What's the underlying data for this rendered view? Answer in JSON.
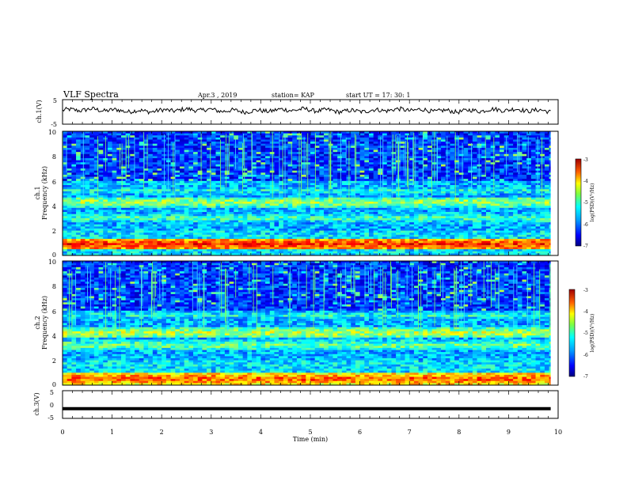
{
  "header": {
    "title": "VLF Spectra",
    "date": "Apr.3  , 2019",
    "station": "station= KAP",
    "start": "start  UT =   17: 30: 1"
  },
  "chart_data": [
    {
      "type": "line",
      "panel": "ch1-waveform",
      "ylabel": "ch.1(V)",
      "xlim": [
        0,
        10
      ],
      "ylim": [
        -5,
        5
      ],
      "yticks": [
        "5",
        "-5"
      ],
      "x_extent": [
        0,
        9.85
      ],
      "level_mean": 0.6,
      "level_fluctuation": 0.9
    },
    {
      "type": "heatmap",
      "panel": "ch1-spectrogram",
      "ylabel": "ch.1",
      "ylabel2": "Frequency (kHz)",
      "xlim": [
        0,
        10
      ],
      "ylim": [
        0,
        10
      ],
      "yticks": [
        "0",
        "2",
        "4",
        "6",
        "8",
        "10"
      ],
      "colorbar": {
        "label": "log(PSD)(V²/Hz)",
        "range": [
          -7,
          -3
        ],
        "ticks": [
          "-3",
          "-4",
          "-5",
          "-6",
          "-7"
        ]
      },
      "bands_khz": [
        {
          "f": 0.9,
          "level": -3.6
        },
        {
          "f": 4.3,
          "level": -4.8
        },
        {
          "f": 3.0,
          "level": -5.2
        },
        {
          "f": 5.2,
          "level": -5.4
        }
      ]
    },
    {
      "type": "heatmap",
      "panel": "ch2-spectrogram",
      "ylabel": "ch.2",
      "ylabel2": "Frequency (kHz)",
      "xlim": [
        0,
        10
      ],
      "ylim": [
        0,
        10
      ],
      "yticks": [
        "0",
        "2",
        "4",
        "6",
        "8",
        "10"
      ],
      "colorbar": {
        "label": "log(PSD)(V²/Hz)",
        "range": [
          -7,
          -3
        ],
        "ticks": [
          "-3",
          "-4",
          "-5",
          "-6",
          "-7"
        ]
      },
      "bands_khz": [
        {
          "f": 0.5,
          "level": -3.8
        },
        {
          "f": 4.2,
          "level": -4.7
        },
        {
          "f": 3.2,
          "level": -5.0
        },
        {
          "f": 5.6,
          "level": -5.4
        }
      ]
    },
    {
      "type": "line",
      "panel": "ch3-waveform",
      "ylabel": "ch.3(V)",
      "xlabel": "Time  (min)",
      "xlim": [
        0,
        10
      ],
      "ylim": [
        -5,
        5
      ],
      "yticks": [
        "5",
        "0",
        "-5"
      ],
      "xticks": [
        "0",
        "1",
        "2",
        "3",
        "4",
        "5",
        "6",
        "7",
        "8",
        "9",
        "10"
      ],
      "x_extent": [
        0,
        9.85
      ],
      "level": -1.5
    }
  ],
  "colors": {
    "colormap": [
      "#000080",
      "#0000ff",
      "#0080ff",
      "#00ffff",
      "#80ff80",
      "#ffff00",
      "#ff8000",
      "#ff0000",
      "#800000"
    ]
  }
}
